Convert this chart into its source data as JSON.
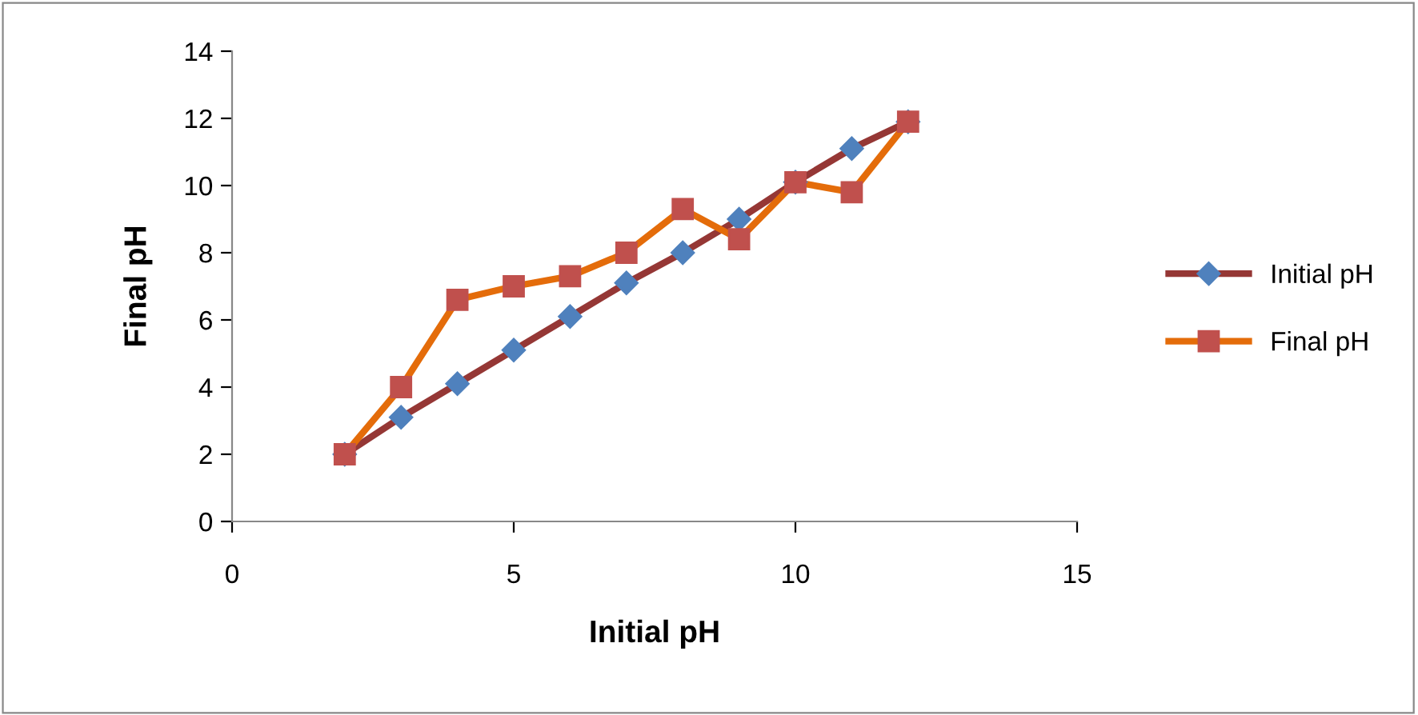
{
  "chart_data": {
    "type": "line",
    "xlabel": "Initial pH",
    "ylabel": "Final pH",
    "x": [
      2,
      3,
      4,
      5,
      6,
      7,
      8,
      9,
      10,
      11,
      12
    ],
    "series": [
      {
        "name": "Initial pH",
        "color": "#953735",
        "colors": [
          "#4f81bd",
          "#4f81bd",
          "#4f81bd",
          "#4f81bd",
          "#4f81bd",
          "#4f81bd",
          "#4f81bd",
          "#4f81bd",
          "#4f81bd",
          "#4f81bd",
          "#4f81bd"
        ],
        "marker": "diamond",
        "values": [
          2.0,
          3.1,
          4.1,
          5.1,
          6.1,
          7.1,
          8.0,
          9.0,
          10.1,
          11.1,
          11.9
        ]
      },
      {
        "name": "Final pH",
        "color": "#e46c0a",
        "colors": [
          "#c0504d",
          "#c0504d",
          "#c0504d",
          "#c0504d",
          "#c0504d",
          "#c0504d",
          "#c0504d",
          "#c0504d",
          "#c0504d",
          "#c0504d",
          "#c0504d"
        ],
        "marker": "square",
        "values": [
          2.0,
          4.0,
          6.6,
          7.0,
          7.3,
          8.0,
          9.3,
          8.4,
          10.1,
          9.8,
          11.9
        ]
      }
    ],
    "xlim": [
      0,
      15
    ],
    "xticks": [
      0,
      5,
      10,
      15
    ],
    "ylim": [
      0,
      14
    ],
    "yticks": [
      0,
      2,
      4,
      6,
      8,
      10,
      12,
      14
    ],
    "grid": false,
    "legend": "right",
    "line_style": "solid"
  }
}
